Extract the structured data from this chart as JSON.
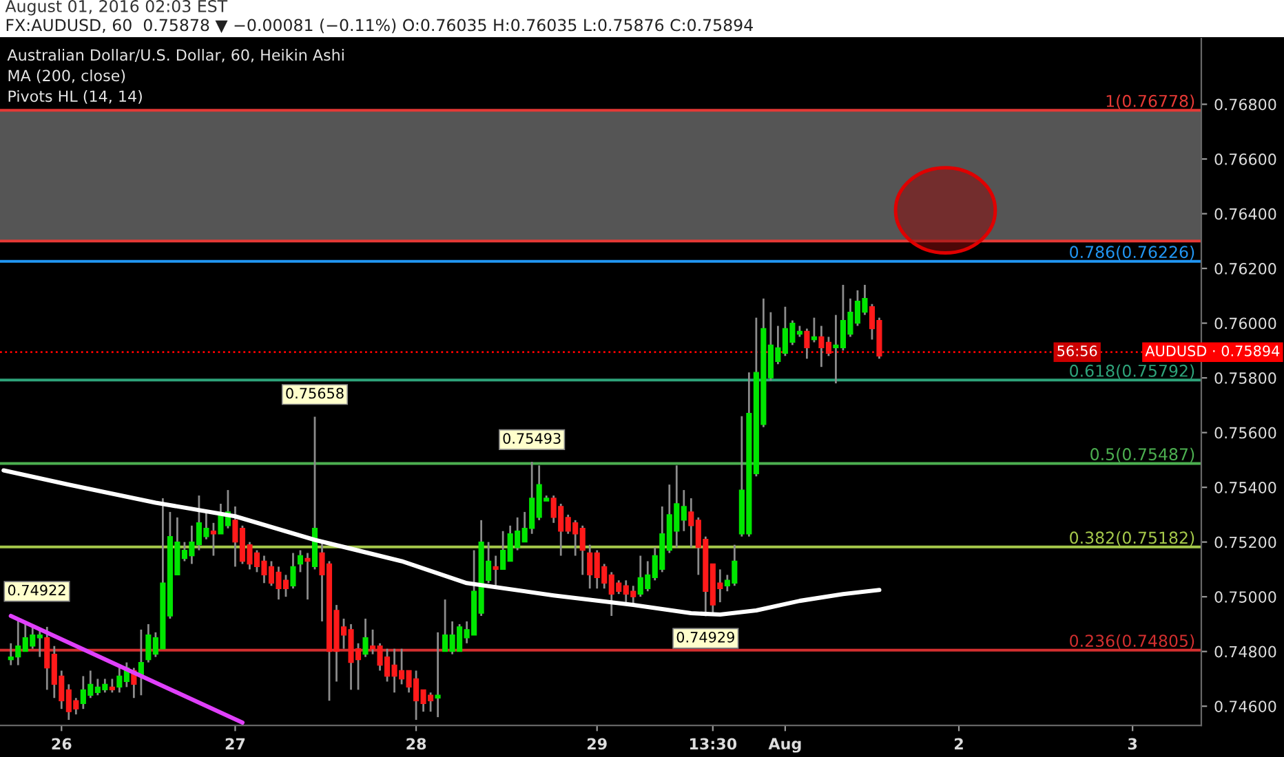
{
  "chart_data": {
    "type": "candlestick",
    "title": "FX:AUDUSD, 60  0.75878 ▼ −0.00081 (−0.11%) O:0.76035 H:0.76035 L:0.75876 C:0.75894",
    "subtitle": "Australian Dollar/U.S. Dollar, 60, Heikin Ashi",
    "categories": [
      null,
      null,
      null,
      null,
      null,
      null,
      null,
      null,
      "26",
      null,
      null,
      null,
      null,
      null,
      null,
      null,
      null,
      null,
      null,
      null,
      null,
      null,
      null,
      null,
      null,
      null,
      null,
      null,
      null,
      null,
      null,
      null,
      "27",
      null,
      null,
      null,
      null,
      null,
      null,
      null,
      null,
      null,
      null,
      null,
      null,
      null,
      null,
      null,
      null,
      null,
      null,
      null,
      null,
      null,
      null,
      null,
      null,
      "28",
      null,
      null,
      null,
      null,
      null,
      null,
      null,
      null,
      null,
      null,
      null,
      null,
      null,
      null,
      null,
      null,
      null,
      null,
      null,
      null,
      null,
      null,
      null,
      null,
      "29",
      null,
      null,
      null,
      null,
      null,
      null,
      null,
      null,
      null,
      null,
      null,
      null,
      null,
      null,
      null,
      "13:30",
      null,
      null,
      null,
      null,
      null,
      null,
      null,
      null,
      null,
      "Aug",
      null,
      null,
      null,
      null,
      null,
      null,
      null,
      null,
      null,
      null,
      null,
      null,
      null,
      null,
      null,
      null,
      null,
      null,
      null,
      null,
      null,
      null,
      null,
      "2",
      null,
      null,
      null,
      null,
      null,
      null,
      null,
      null,
      null,
      null,
      null,
      null,
      null,
      null,
      null,
      null,
      null,
      null,
      null,
      null,
      null,
      null,
      null,
      "3",
      null,
      null,
      null,
      null,
      null,
      null,
      null,
      null,
      null
    ],
    "ohlc": [
      null,
      [
        0.7477,
        0.7483,
        0.7475,
        0.7478
      ],
      [
        0.7478,
        0.74922,
        0.7475,
        0.7482
      ],
      [
        0.748,
        0.749,
        0.748,
        0.7485
      ],
      [
        0.7482,
        0.7489,
        0.7481,
        0.7486
      ],
      [
        0.7485,
        0.7488,
        0.7478,
        0.7486
      ],
      [
        0.7485,
        0.7489,
        0.7466,
        0.7474
      ],
      [
        0.7479,
        0.7482,
        0.7463,
        0.7468
      ],
      [
        0.7471,
        0.7473,
        0.7459,
        0.7462
      ],
      [
        0.7466,
        0.7468,
        0.7455,
        0.7458
      ],
      [
        0.7462,
        0.7463,
        0.7457,
        0.7459
      ],
      [
        0.7461,
        0.7471,
        0.7459,
        0.7466
      ],
      [
        0.7464,
        0.7473,
        0.7463,
        0.7468
      ],
      [
        0.7465,
        0.747,
        0.7464,
        0.7467
      ],
      [
        0.7466,
        0.747,
        0.7465,
        0.7468
      ],
      [
        0.7467,
        0.747,
        0.7465,
        0.7466
      ],
      [
        0.7467,
        0.7475,
        0.7465,
        0.7471
      ],
      [
        0.7469,
        0.7476,
        0.7467,
        0.7474
      ],
      [
        0.7473,
        0.7474,
        0.7463,
        0.7468
      ],
      [
        0.7471,
        0.7488,
        0.7464,
        0.7476
      ],
      [
        0.7477,
        0.749,
        0.7476,
        0.7486
      ],
      [
        0.7479,
        0.7487,
        0.7478,
        0.7485
      ],
      [
        0.7481,
        0.7536,
        0.7481,
        0.7505
      ],
      [
        0.7493,
        0.7531,
        0.7492,
        0.7522
      ],
      [
        0.7508,
        0.7529,
        0.7508,
        0.752
      ],
      [
        0.7514,
        0.752,
        0.7513,
        0.7517
      ],
      [
        0.7515,
        0.7526,
        0.7512,
        0.752
      ],
      [
        0.7519,
        0.7537,
        0.7517,
        0.7527
      ],
      [
        0.7522,
        0.7531,
        0.7521,
        0.7525
      ],
      [
        0.7524,
        0.7527,
        0.7515,
        0.7523
      ],
      [
        0.7523,
        0.7534,
        0.7523,
        0.753
      ],
      [
        0.7526,
        0.7539,
        0.7525,
        0.7531
      ],
      [
        0.7528,
        0.7533,
        0.7511,
        0.752
      ],
      [
        0.7525,
        0.7526,
        0.7512,
        0.7513
      ],
      [
        0.7519,
        0.752,
        0.751,
        0.7512
      ],
      [
        0.7516,
        0.7517,
        0.7509,
        0.7511
      ],
      [
        0.7513,
        0.7515,
        0.7505,
        0.7508
      ],
      [
        0.7511,
        0.7513,
        0.7504,
        0.7505
      ],
      [
        0.7509,
        0.7511,
        0.7499,
        0.7503
      ],
      [
        0.7506,
        0.7508,
        0.75,
        0.7503
      ],
      [
        0.7504,
        0.7516,
        0.7503,
        0.7511
      ],
      [
        0.7512,
        0.7517,
        0.7509,
        0.7515
      ],
      [
        0.7514,
        0.7516,
        0.7499,
        0.7513
      ],
      [
        0.7511,
        0.75658,
        0.751,
        0.7525
      ],
      [
        0.7516,
        0.752,
        0.7491,
        0.7508
      ],
      [
        0.7512,
        0.7513,
        0.7462,
        0.748
      ],
      [
        0.7495,
        0.7497,
        0.7469,
        0.748
      ],
      [
        0.7489,
        0.7492,
        0.7481,
        0.7486
      ],
      [
        0.7488,
        0.749,
        0.7466,
        0.7476
      ],
      [
        0.7481,
        0.7483,
        0.7466,
        0.7477
      ],
      [
        0.7479,
        0.7492,
        0.7478,
        0.7485
      ],
      [
        0.7482,
        0.7488,
        0.7479,
        0.7481
      ],
      [
        0.7482,
        0.7483,
        0.7473,
        0.7475
      ],
      [
        0.7478,
        0.7481,
        0.7469,
        0.7471
      ],
      [
        0.7475,
        0.7481,
        0.7465,
        0.7471
      ],
      [
        0.7473,
        0.7481,
        0.7468,
        0.747
      ],
      [
        0.7473,
        0.7473,
        0.7465,
        0.7467
      ],
      [
        0.747,
        0.7473,
        0.7455,
        0.7462
      ],
      [
        0.7466,
        0.7466,
        0.7458,
        0.7461
      ],
      [
        0.7464,
        0.7465,
        0.7458,
        0.7462
      ],
      [
        0.7463,
        0.7487,
        0.7456,
        0.7464
      ],
      [
        0.748,
        0.7499,
        0.748,
        0.7486
      ],
      [
        0.748,
        0.7491,
        0.7479,
        0.7486
      ],
      [
        0.748,
        0.749,
        0.748,
        0.7489
      ],
      [
        0.7485,
        0.7491,
        0.7483,
        0.7488
      ],
      [
        0.7486,
        0.7517,
        0.7486,
        0.7502
      ],
      [
        0.7494,
        0.7528,
        0.7493,
        0.752
      ],
      [
        0.7506,
        0.752,
        0.7505,
        0.7513
      ],
      [
        0.7511,
        0.7515,
        0.7504,
        0.751
      ],
      [
        0.751,
        0.7524,
        0.751,
        0.7517
      ],
      [
        0.7513,
        0.7526,
        0.7513,
        0.7523
      ],
      [
        0.7518,
        0.7529,
        0.7517,
        0.7524
      ],
      [
        0.752,
        0.7531,
        0.752,
        0.7525
      ],
      [
        0.7525,
        0.75493,
        0.7523,
        0.7536
      ],
      [
        0.7529,
        0.7548,
        0.7528,
        0.7541
      ],
      [
        0.7535,
        0.7537,
        0.7535,
        0.7536
      ],
      [
        0.7536,
        0.7537,
        0.7527,
        0.7529
      ],
      [
        0.7533,
        0.7534,
        0.7515,
        0.7524
      ],
      [
        0.7529,
        0.753,
        0.7523,
        0.7524
      ],
      [
        0.7527,
        0.7528,
        0.7515,
        0.7523
      ],
      [
        0.7525,
        0.7526,
        0.7508,
        0.7517
      ],
      [
        0.7516,
        0.7519,
        0.7503,
        0.7508
      ],
      [
        0.7516,
        0.7517,
        0.7503,
        0.7507
      ],
      [
        0.7511,
        0.7512,
        0.7503,
        0.7505
      ],
      [
        0.7508,
        0.7509,
        0.7493,
        0.7501
      ],
      [
        0.7505,
        0.7506,
        0.7501,
        0.7502
      ],
      [
        0.7504,
        0.7506,
        0.7498,
        0.7501
      ],
      [
        0.7502,
        0.7504,
        0.7497,
        0.75
      ],
      [
        0.7501,
        0.7515,
        0.75,
        0.7507
      ],
      [
        0.7503,
        0.7513,
        0.7502,
        0.7508
      ],
      [
        0.7507,
        0.7518,
        0.7506,
        0.7515
      ],
      [
        0.751,
        0.7533,
        0.7509,
        0.7523
      ],
      [
        0.7517,
        0.7541,
        0.7516,
        0.753
      ],
      [
        0.7524,
        0.7548,
        0.7518,
        0.7534
      ],
      [
        0.7528,
        0.7539,
        0.7524,
        0.7533
      ],
      [
        0.7531,
        0.7536,
        0.7518,
        0.7526
      ],
      [
        0.7528,
        0.7529,
        0.7508,
        0.7518
      ],
      [
        0.7521,
        0.7522,
        0.74929,
        0.7502
      ],
      [
        0.7512,
        0.7512,
        0.7493,
        0.7497
      ],
      [
        0.7505,
        0.751,
        0.7498,
        0.7503
      ],
      [
        0.7504,
        0.7508,
        0.7502,
        0.7506
      ],
      [
        0.7505,
        0.7519,
        0.7504,
        0.7513
      ],
      [
        0.7523,
        0.7566,
        0.7522,
        0.7539
      ],
      [
        0.7523,
        0.7582,
        0.7522,
        0.7567
      ],
      [
        0.7545,
        0.7602,
        0.7544,
        0.7582
      ],
      [
        0.7563,
        0.7609,
        0.7562,
        0.7598
      ],
      [
        0.758,
        0.7604,
        0.7579,
        0.7592
      ],
      [
        0.7586,
        0.7599,
        0.7585,
        0.7591
      ],
      [
        0.7589,
        0.7606,
        0.7588,
        0.7598
      ],
      [
        0.7593,
        0.7601,
        0.7592,
        0.76
      ],
      [
        0.7596,
        0.7599,
        0.7595,
        0.7597
      ],
      [
        0.7597,
        0.7598,
        0.7587,
        0.7591
      ],
      [
        0.7594,
        0.7602,
        0.7593,
        0.7595
      ],
      [
        0.7595,
        0.7599,
        0.7584,
        0.7591
      ],
      [
        0.7593,
        0.7595,
        0.7588,
        0.7589
      ],
      [
        0.7591,
        0.7603,
        0.7578,
        0.7592
      ],
      [
        0.7591,
        0.7614,
        0.759,
        0.7601
      ],
      [
        0.7596,
        0.7609,
        0.7595,
        0.7604
      ],
      [
        0.76,
        0.7612,
        0.7599,
        0.7608
      ],
      [
        0.7604,
        0.7614,
        0.7603,
        0.7609
      ],
      [
        0.7606,
        0.7607,
        0.7594,
        0.7598
      ],
      [
        0.7601,
        0.7602,
        0.7587,
        0.7588
      ],
      null,
      null,
      null,
      null,
      null,
      null,
      null,
      null,
      null,
      null,
      null,
      null,
      null,
      null,
      null,
      null,
      null,
      null,
      null,
      null,
      null,
      null,
      null,
      null,
      null,
      null,
      null,
      null,
      null,
      null,
      null,
      null,
      null,
      null,
      null,
      null,
      null,
      null,
      null,
      null,
      null,
      null,
      null,
      null
    ],
    "series": [
      {
        "type": "line",
        "name": "MA (200, close)",
        "color": "#ffffff",
        "values": [
          0.75462,
          null,
          null,
          null,
          null,
          null,
          null,
          null,
          null,
          0.7541,
          null,
          null,
          null,
          null,
          null,
          null,
          null,
          null,
          null,
          null,
          null,
          0.75344,
          null,
          null,
          null,
          null,
          null,
          null,
          null,
          null,
          null,
          null,
          0.75294,
          null,
          null,
          null,
          null,
          null,
          null,
          null,
          null,
          null,
          null,
          0.75208,
          null,
          null,
          null,
          null,
          null,
          null,
          null,
          null,
          null,
          null,
          null,
          0.7513,
          null,
          null,
          null,
          null,
          null,
          null,
          null,
          null,
          0.7505,
          null,
          null,
          null,
          null,
          null,
          null,
          null,
          null,
          null,
          null,
          null,
          0.75005,
          null,
          null,
          null,
          null,
          null,
          null,
          null,
          null,
          null,
          null,
          0.7497,
          null,
          null,
          null,
          null,
          null,
          null,
          null,
          0.7494,
          null,
          null,
          null,
          0.74935,
          null,
          null,
          null,
          null,
          0.7495,
          null,
          null,
          null,
          null,
          null,
          0.74985,
          null,
          null,
          null,
          null,
          null,
          0.7501,
          null,
          null,
          null,
          null,
          0.75025,
          null,
          null,
          null,
          null,
          null,
          null,
          null,
          null,
          null,
          null,
          null,
          null,
          null,
          null,
          null,
          null,
          null,
          null,
          null,
          null,
          null,
          null,
          null,
          null,
          null,
          null,
          null,
          null,
          null,
          null,
          null,
          null,
          null,
          null,
          null,
          null,
          null,
          null,
          null,
          null,
          null,
          null,
          null,
          null
        ]
      },
      {
        "type": "line",
        "color": "#e040fb",
        "values": [
          null,
          0.7493,
          null,
          null,
          null,
          null,
          null,
          null,
          null,
          null,
          null,
          null,
          null,
          null,
          null,
          null,
          null,
          null,
          null,
          null,
          null,
          null,
          null,
          null,
          null,
          null,
          null,
          null,
          null,
          null,
          null,
          null,
          null,
          0.7454,
          null,
          null,
          null,
          null,
          null,
          null,
          null,
          null,
          null,
          null,
          null,
          null,
          null,
          null,
          null,
          null,
          null,
          null,
          null,
          null,
          null,
          null,
          null,
          null,
          null,
          null,
          null,
          null,
          null,
          null,
          null,
          null,
          null,
          null,
          null,
          null,
          null,
          null,
          null,
          null,
          null,
          null,
          null,
          null,
          null,
          null,
          null,
          null,
          null,
          null,
          null,
          null,
          null,
          null,
          null,
          null,
          null,
          null,
          null,
          null,
          null,
          null,
          null,
          null,
          null,
          null,
          null,
          null,
          null,
          null,
          null,
          null,
          null,
          null,
          null,
          null,
          null,
          null,
          null,
          null,
          null,
          null,
          null,
          null,
          null,
          null,
          null,
          null,
          null,
          null,
          null,
          null,
          null,
          null,
          null,
          null,
          null,
          null,
          null,
          null,
          null,
          null,
          null,
          null,
          null,
          null,
          null,
          null,
          null,
          null,
          null,
          null,
          null,
          null,
          null,
          null,
          null,
          null,
          null,
          null,
          null,
          null,
          null,
          null,
          null,
          null,
          null,
          null,
          null,
          null,
          null,
          null
        ]
      }
    ],
    "annotations": [
      "August 01, 2016 02:03 EST",
      "Pivots HL (14, 14)",
      "56:56",
      "0.74922",
      {
        "text": "0.75658",
        "y": 0.75658
      },
      {
        "text": "0.75493",
        "y": 0.75493
      },
      {
        "text": "0.74929",
        "y": 0.74929
      }
    ],
    "ref_lines": [
      {
        "axis": "y",
        "value": 0.76778,
        "label": "1(0.76778)",
        "color": "#e53935"
      },
      {
        "axis": "y",
        "value": 0.763,
        "color": "#e53935"
      },
      {
        "axis": "y",
        "value": 0.76226,
        "label": "0.786(0.76226)",
        "color": "#2196f3"
      },
      {
        "axis": "y",
        "value": 0.75894,
        "label": "AUDUSD · 0.75894",
        "color": "#ff0000",
        "line_style": "dotted"
      },
      {
        "axis": "y",
        "value": 0.75792,
        "label": "0.618(0.75792)",
        "color": "#2ea37a"
      },
      {
        "axis": "y",
        "value": 0.75487,
        "label": "0.5(0.75487)",
        "color": "#4caf50"
      },
      {
        "axis": "y",
        "value": 0.75182,
        "label": "0.382(0.75182)",
        "color": "#a5c84a"
      },
      {
        "axis": "y",
        "value": 0.74805,
        "label": "0.236(0.74805)",
        "color": "#d32f2f"
      }
    ],
    "bands": [
      {
        "axis": "y",
        "from": 0.763,
        "to": 0.76778,
        "color": "#555555"
      }
    ],
    "ylim": [
      0.7453,
      0.7704
    ],
    "yticks": [
      {
        "value": 0.746,
        "label": "0.74600"
      },
      {
        "value": 0.748,
        "label": "0.74800"
      },
      {
        "value": 0.75,
        "label": "0.75000"
      },
      {
        "value": 0.752,
        "label": "0.75200"
      },
      {
        "value": 0.754,
        "label": "0.75400"
      },
      {
        "value": 0.756,
        "label": "0.75600"
      },
      {
        "value": 0.758,
        "label": "0.75800"
      },
      {
        "value": 0.76,
        "label": "0.76000"
      },
      {
        "value": 0.762,
        "label": "0.76200"
      },
      {
        "value": 0.764,
        "label": "0.76400"
      },
      {
        "value": 0.766,
        "label": "0.76600"
      },
      {
        "value": 0.768,
        "label": "0.76800"
      }
    ]
  }
}
